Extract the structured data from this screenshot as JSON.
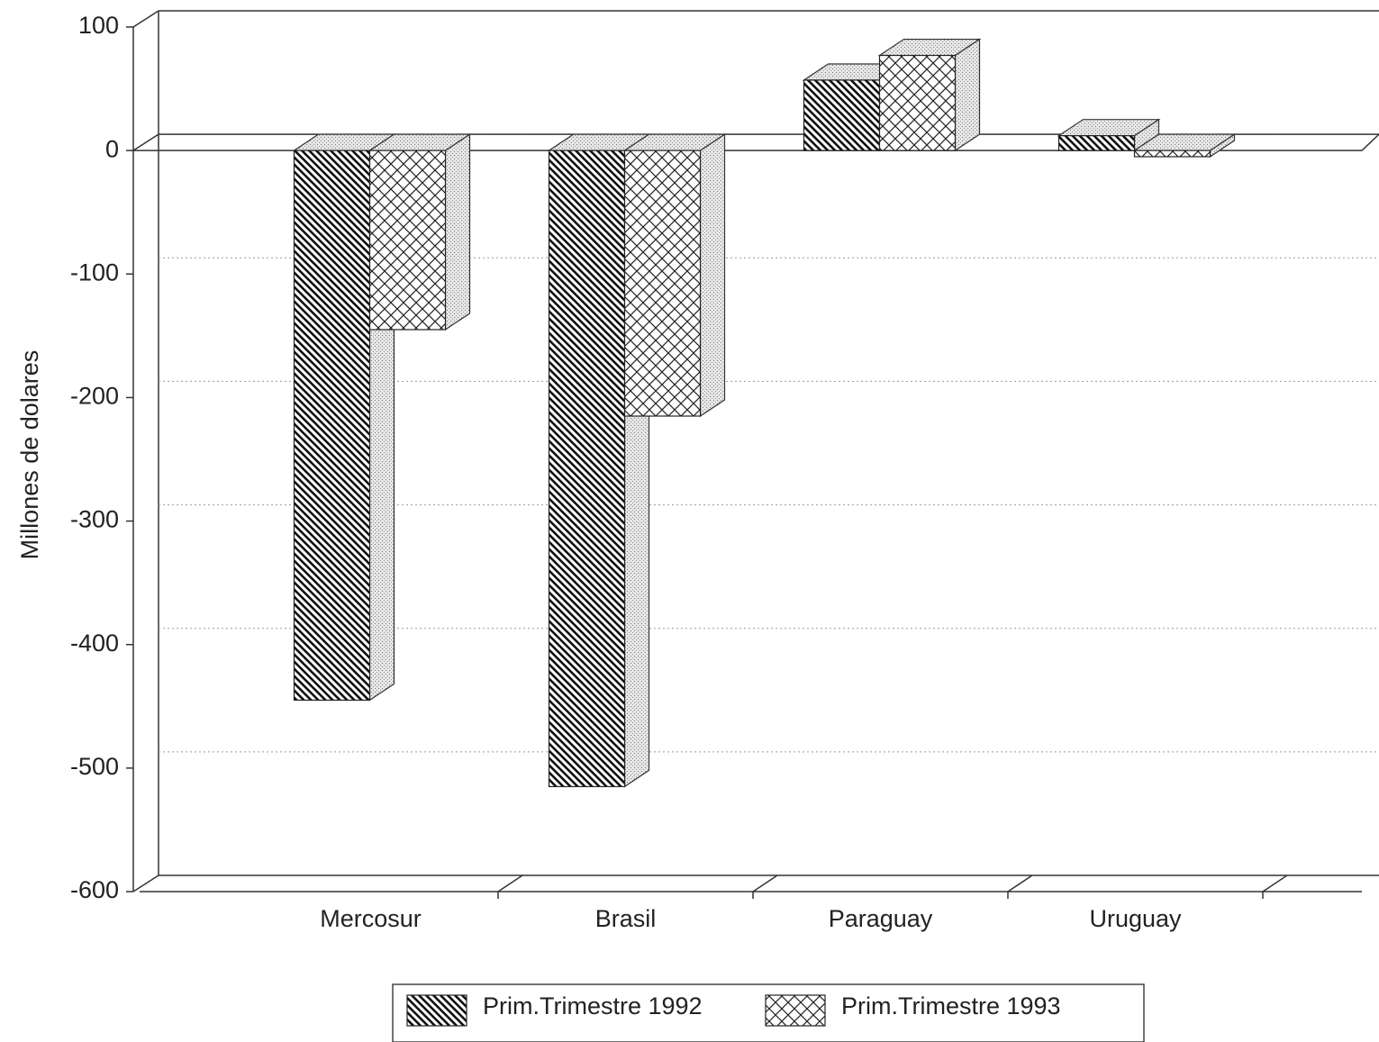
{
  "chart_data": {
    "type": "bar3d",
    "y_label": "Millones de dolares",
    "categories": [
      "Mercosur",
      "Brasil",
      "Paraguay",
      "Uruguay"
    ],
    "series": [
      {
        "name": "Prim.Trimestre 1992",
        "hatch": "diagonal",
        "values": [
          -445,
          -515,
          57,
          12
        ]
      },
      {
        "name": "Prim.Trimestre 1993",
        "hatch": "cross",
        "values": [
          -145,
          -215,
          77,
          -5
        ]
      }
    ],
    "ylim": [
      -600,
      100
    ],
    "yticks": [
      -600,
      -500,
      -400,
      -300,
      -200,
      -100,
      0,
      100
    ],
    "grid": true
  }
}
